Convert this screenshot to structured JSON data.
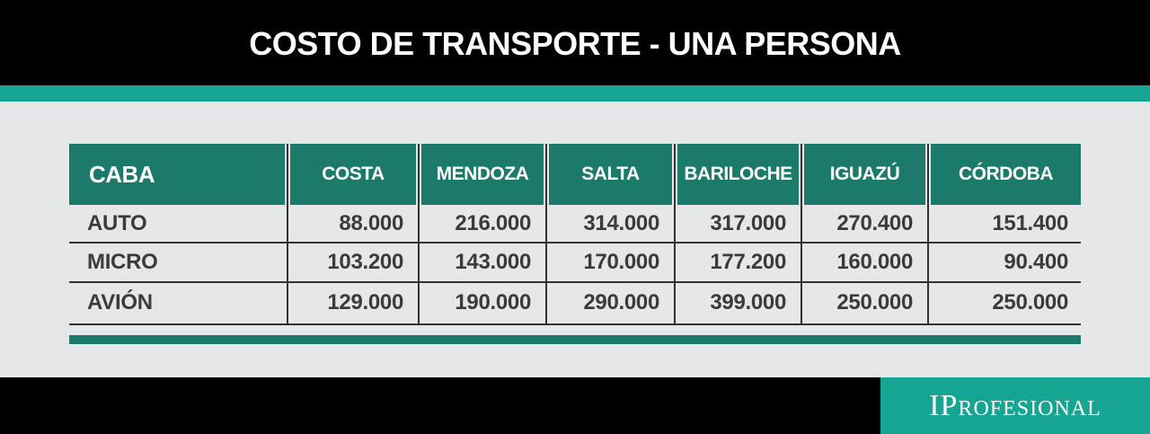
{
  "header": {
    "title": "COSTO DE TRANSPORTE - UNA PERSONA"
  },
  "table": {
    "corner": "CABA",
    "columns": [
      "COSTA",
      "MENDOZA",
      "SALTA",
      "BARILOCHE",
      "IGUAZÚ",
      "CÓRDOBA"
    ],
    "rows": [
      {
        "label": "AUTO",
        "cells": [
          "88.000",
          "216.000",
          "314.000",
          "317.000",
          "270.400",
          "151.400"
        ]
      },
      {
        "label": "MICRO",
        "cells": [
          "103.200",
          "143.000",
          "170.000",
          "177.200",
          "160.000",
          "90.400"
        ]
      },
      {
        "label": "AVIÓN",
        "cells": [
          "129.000",
          "190.000",
          "290.000",
          "399.000",
          "250.000",
          "250.000"
        ]
      }
    ]
  },
  "footer": {
    "brand": "IProfesional"
  }
}
